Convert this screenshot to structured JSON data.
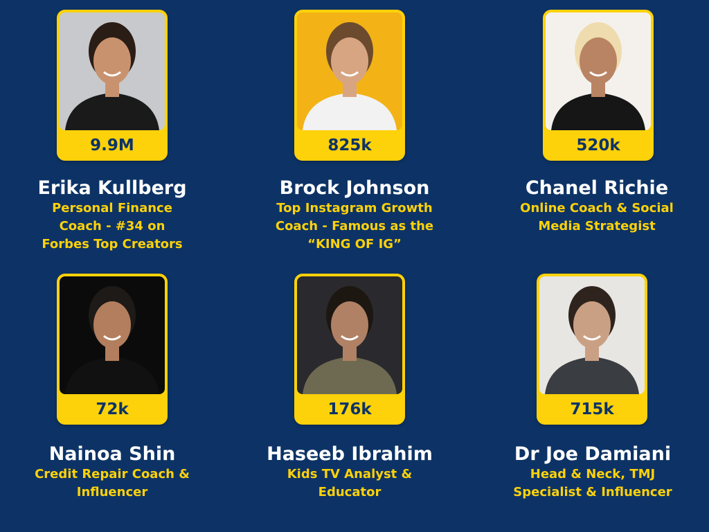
{
  "people": [
    {
      "name": "Erika Kullberg",
      "followers": "9.9M",
      "role": "Personal Finance\nCoach - #34 on\nForbes Top Creators",
      "photo_bg": "#c7c9cc",
      "hair": "#2a1d16",
      "skin": "#c9926f",
      "shirt": "#1a1a1a"
    },
    {
      "name": "Brock Johnson",
      "followers": "825k",
      "role": "Top Instagram Growth\nCoach -  Famous as the\n“KING OF IG”",
      "photo_bg": "#f3b316",
      "hair": "#6b4a2e",
      "skin": "#d8a583",
      "shirt": "#f2f2f2"
    },
    {
      "name": "Chanel Richie",
      "followers": "520k",
      "role": "Online Coach & Social\nMedia Strategist",
      "photo_bg": "#f4f1ed",
      "hair": "#efdcae",
      "skin": "#b98463",
      "shirt": "#161616"
    },
    {
      "name": "Nainoa Shin",
      "followers": "72k",
      "role": "Credit Repair Coach &\nInfluencer",
      "photo_bg": "#0b0b0b",
      "hair": "#1d1a18",
      "skin": "#b27e5d",
      "shirt": "#111111"
    },
    {
      "name": "Haseeb Ibrahim",
      "followers": "176k",
      "role": "Kids TV Analyst &\nEducator",
      "photo_bg": "#2a2a2e",
      "hair": "#1d1712",
      "skin": "#b08165",
      "shirt": "#6e6a52"
    },
    {
      "name": "Dr Joe Damiani",
      "followers": "715k",
      "role": "Head & Neck, TMJ\nSpecialist & Influencer",
      "photo_bg": "#e8e6e2",
      "hair": "#2e241d",
      "skin": "#caa084",
      "shirt": "#3a3d42"
    }
  ],
  "colors": {
    "background": "#0d3366",
    "accent": "#fdd20a",
    "name_text": "#ffffff"
  }
}
